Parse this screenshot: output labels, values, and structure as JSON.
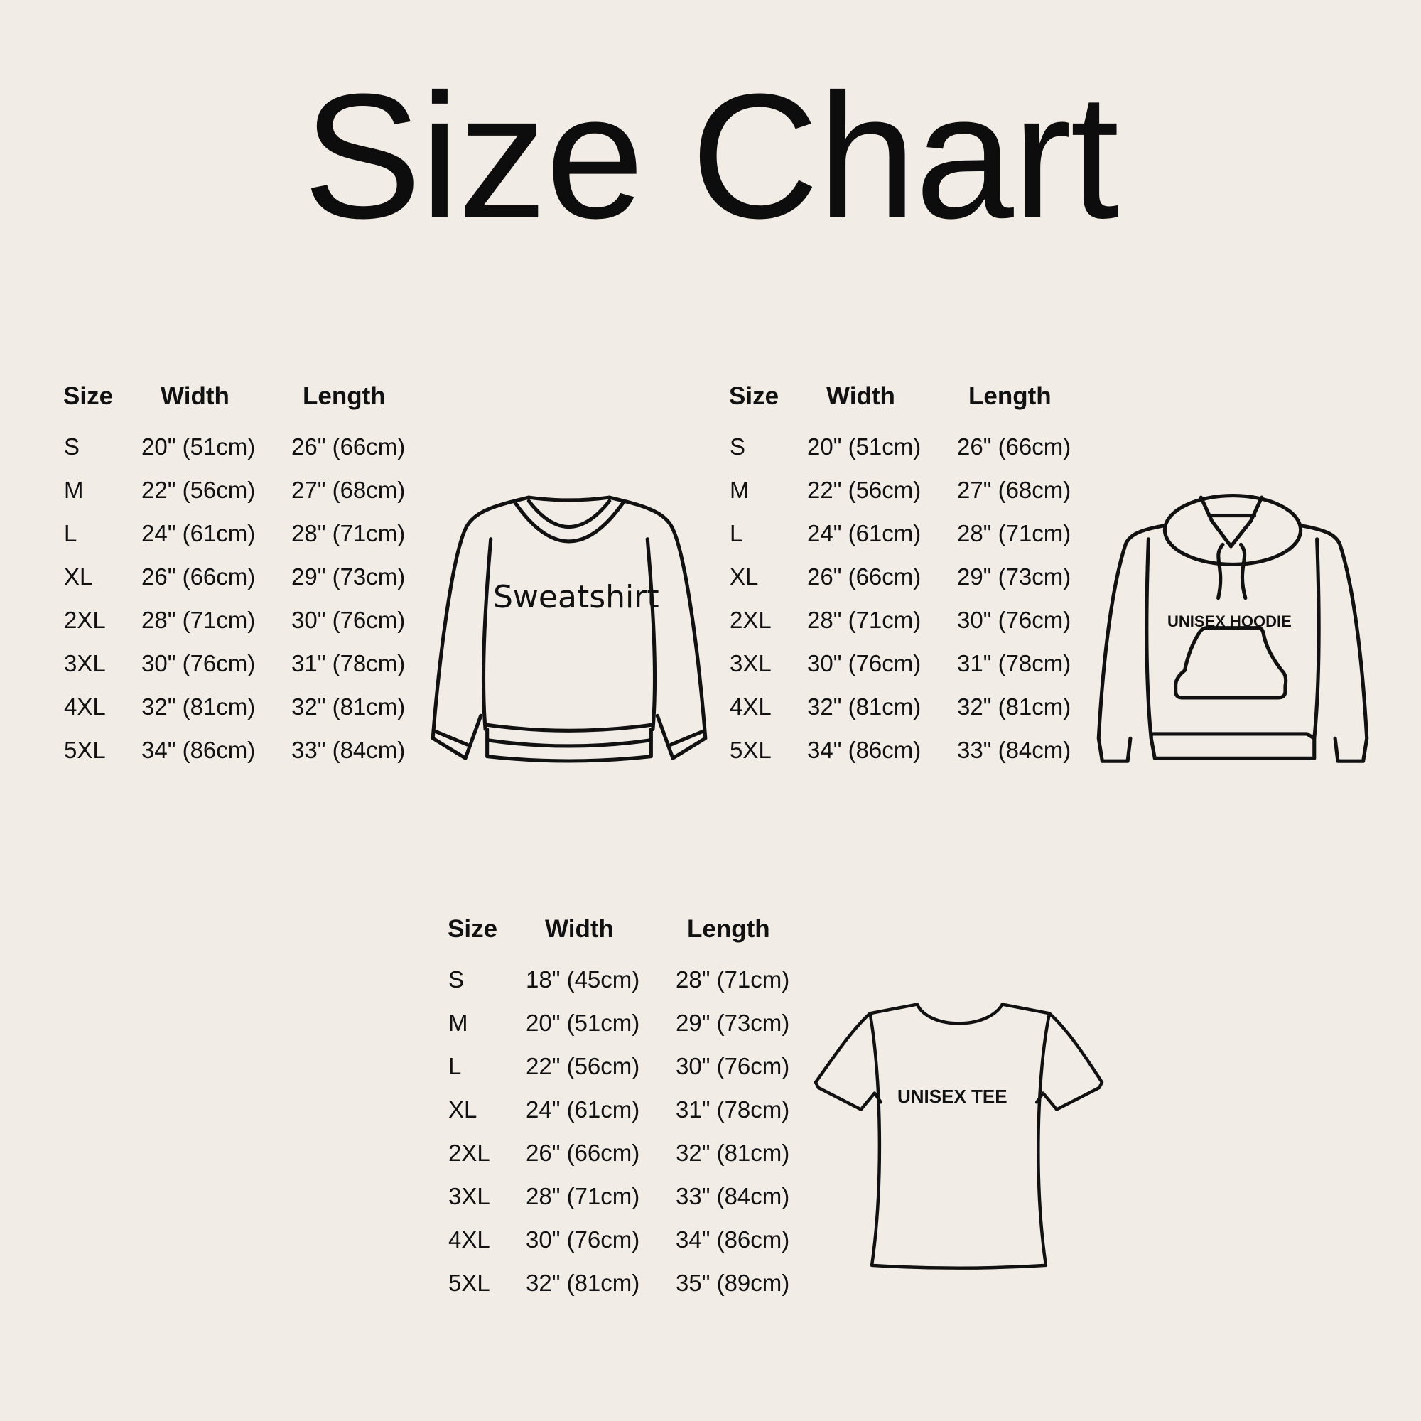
{
  "title": "Size Chart",
  "colors": {
    "background": "#f2ece6",
    "text": "#111111",
    "outline": "#111111"
  },
  "tables": [
    {
      "garment_label": "Sweatshirt",
      "garment_icon": "sweatshirt-icon",
      "headers": [
        "Size",
        "Width",
        "Length"
      ],
      "rows": [
        [
          "S",
          "20\" (51cm)",
          "26\" (66cm)"
        ],
        [
          "M",
          "22\" (56cm)",
          "27\" (68cm)"
        ],
        [
          "L",
          "24\" (61cm)",
          "28\" (71cm)"
        ],
        [
          "XL",
          "26\" (66cm)",
          "29\" (73cm)"
        ],
        [
          "2XL",
          "28\" (71cm)",
          "30\" (76cm)"
        ],
        [
          "3XL",
          "30\" (76cm)",
          "31\" (78cm)"
        ],
        [
          "4XL",
          "32\" (81cm)",
          "32\" (81cm)"
        ],
        [
          "5XL",
          "34\" (86cm)",
          "33\" (84cm)"
        ]
      ]
    },
    {
      "garment_label": "UNISEX HOODIE",
      "garment_icon": "hoodie-icon",
      "headers": [
        "Size",
        "Width",
        "Length"
      ],
      "rows": [
        [
          "S",
          "20\" (51cm)",
          "26\" (66cm)"
        ],
        [
          "M",
          "22\" (56cm)",
          "27\" (68cm)"
        ],
        [
          "L",
          "24\" (61cm)",
          "28\" (71cm)"
        ],
        [
          "XL",
          "26\" (66cm)",
          "29\" (73cm)"
        ],
        [
          "2XL",
          "28\" (71cm)",
          "30\" (76cm)"
        ],
        [
          "3XL",
          "30\" (76cm)",
          "31\" (78cm)"
        ],
        [
          "4XL",
          "32\" (81cm)",
          "32\" (81cm)"
        ],
        [
          "5XL",
          "34\" (86cm)",
          "33\" (84cm)"
        ]
      ]
    },
    {
      "garment_label": "UNISEX TEE",
      "garment_icon": "tshirt-icon",
      "headers": [
        "Size",
        "Width",
        "Length"
      ],
      "rows": [
        [
          "S",
          "18\" (45cm)",
          "28\" (71cm)"
        ],
        [
          "M",
          "20\" (51cm)",
          "29\" (73cm)"
        ],
        [
          "L",
          "22\" (56cm)",
          "30\" (76cm)"
        ],
        [
          "XL",
          "24\" (61cm)",
          "31\" (78cm)"
        ],
        [
          "2XL",
          "26\" (66cm)",
          "32\" (81cm)"
        ],
        [
          "3XL",
          "28\" (71cm)",
          "33\" (84cm)"
        ],
        [
          "4XL",
          "30\" (76cm)",
          "34\" (86cm)"
        ],
        [
          "5XL",
          "32\" (81cm)",
          "35\" (89cm)"
        ]
      ]
    }
  ]
}
